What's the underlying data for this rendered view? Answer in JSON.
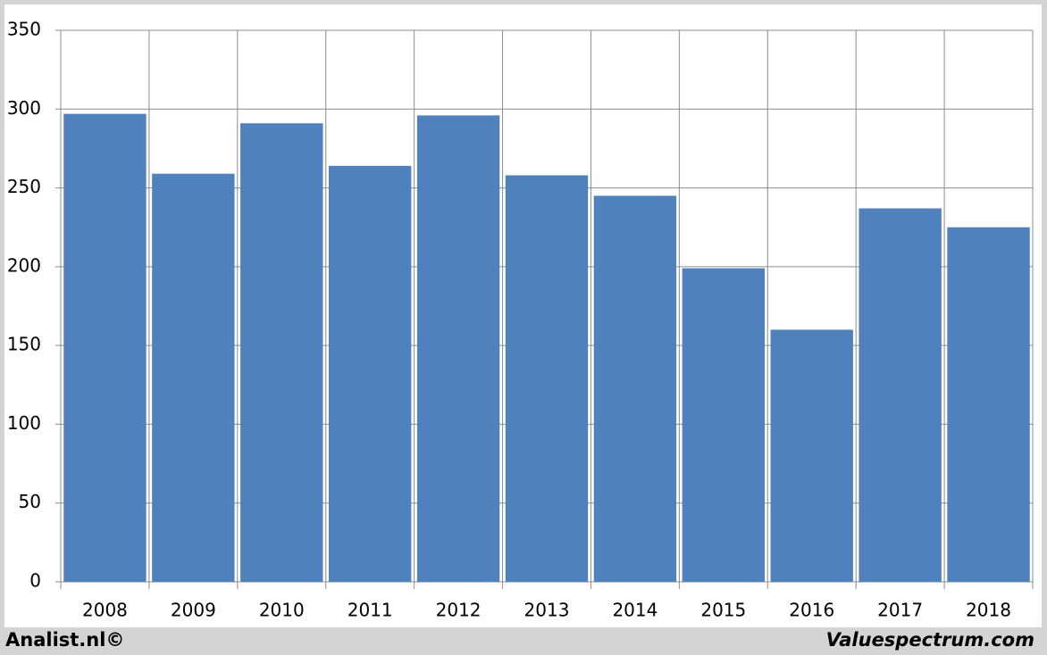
{
  "chart_data": {
    "type": "bar",
    "categories": [
      "2008",
      "2009",
      "2010",
      "2011",
      "2012",
      "2013",
      "2014",
      "2015",
      "2016",
      "2017",
      "2018"
    ],
    "values": [
      297,
      259,
      291,
      264,
      296,
      258,
      245,
      199,
      160,
      237,
      225
    ],
    "color": "#4f81bd",
    "ylim": [
      0,
      350
    ],
    "yticks": [
      0,
      50,
      100,
      150,
      200,
      250,
      300,
      350
    ],
    "grid": true
  },
  "footer": {
    "left": "Analist.nl©",
    "right": "Valuespectrum.com"
  }
}
